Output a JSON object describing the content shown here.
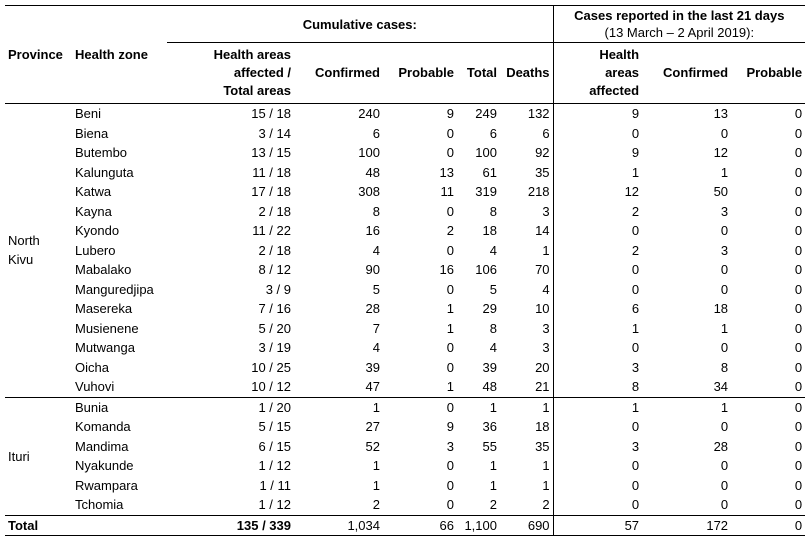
{
  "header": {
    "province": "Province",
    "health_zone": "Health zone",
    "cumulative": "Cumulative cases:",
    "recent_line1": "Cases reported in the last 21 days",
    "recent_line2": "(13 March – 2 April 2019):",
    "areas_affected": [
      "Health areas",
      "affected /",
      "Total areas"
    ],
    "confirmed": "Confirmed",
    "probable": "Probable",
    "total": "Total",
    "deaths": "Deaths",
    "recent_areas": [
      "Health",
      "areas",
      "affected"
    ],
    "recent_confirmed": "Confirmed",
    "recent_probable": "Probable"
  },
  "provinces": [
    {
      "name_lines": [
        "North",
        "Kivu"
      ],
      "zones": [
        {
          "zone": "Beni",
          "areas": "15 / 18",
          "confirmed": "240",
          "probable": "9",
          "total": "249",
          "deaths": "132",
          "r_areas": "9",
          "r_confirmed": "13",
          "r_probable": "0"
        },
        {
          "zone": "Biena",
          "areas": "3 / 14",
          "confirmed": "6",
          "probable": "0",
          "total": "6",
          "deaths": "6",
          "r_areas": "0",
          "r_confirmed": "0",
          "r_probable": "0"
        },
        {
          "zone": "Butembo",
          "areas": "13 / 15",
          "confirmed": "100",
          "probable": "0",
          "total": "100",
          "deaths": "92",
          "r_areas": "9",
          "r_confirmed": "12",
          "r_probable": "0"
        },
        {
          "zone": "Kalunguta",
          "areas": "11 / 18",
          "confirmed": "48",
          "probable": "13",
          "total": "61",
          "deaths": "35",
          "r_areas": "1",
          "r_confirmed": "1",
          "r_probable": "0"
        },
        {
          "zone": "Katwa",
          "areas": "17 / 18",
          "confirmed": "308",
          "probable": "11",
          "total": "319",
          "deaths": "218",
          "r_areas": "12",
          "r_confirmed": "50",
          "r_probable": "0"
        },
        {
          "zone": "Kayna",
          "areas": "2 / 18",
          "confirmed": "8",
          "probable": "0",
          "total": "8",
          "deaths": "3",
          "r_areas": "2",
          "r_confirmed": "3",
          "r_probable": "0"
        },
        {
          "zone": "Kyondo",
          "areas": "11 / 22",
          "confirmed": "16",
          "probable": "2",
          "total": "18",
          "deaths": "14",
          "r_areas": "0",
          "r_confirmed": "0",
          "r_probable": "0"
        },
        {
          "zone": "Lubero",
          "areas": "2 / 18",
          "confirmed": "4",
          "probable": "0",
          "total": "4",
          "deaths": "1",
          "r_areas": "2",
          "r_confirmed": "3",
          "r_probable": "0"
        },
        {
          "zone": "Mabalako",
          "areas": "8 / 12",
          "confirmed": "90",
          "probable": "16",
          "total": "106",
          "deaths": "70",
          "r_areas": "0",
          "r_confirmed": "0",
          "r_probable": "0"
        },
        {
          "zone": "Manguredjipa",
          "areas": "3 / 9",
          "confirmed": "5",
          "probable": "0",
          "total": "5",
          "deaths": "4",
          "r_areas": "0",
          "r_confirmed": "0",
          "r_probable": "0"
        },
        {
          "zone": "Masereka",
          "areas": "7 / 16",
          "confirmed": "28",
          "probable": "1",
          "total": "29",
          "deaths": "10",
          "r_areas": "6",
          "r_confirmed": "18",
          "r_probable": "0"
        },
        {
          "zone": "Musienene",
          "areas": "5 / 20",
          "confirmed": "7",
          "probable": "1",
          "total": "8",
          "deaths": "3",
          "r_areas": "1",
          "r_confirmed": "1",
          "r_probable": "0"
        },
        {
          "zone": "Mutwanga",
          "areas": "3 / 19",
          "confirmed": "4",
          "probable": "0",
          "total": "4",
          "deaths": "3",
          "r_areas": "0",
          "r_confirmed": "0",
          "r_probable": "0"
        },
        {
          "zone": "Oicha",
          "areas": "10 / 25",
          "confirmed": "39",
          "probable": "0",
          "total": "39",
          "deaths": "20",
          "r_areas": "3",
          "r_confirmed": "8",
          "r_probable": "0"
        },
        {
          "zone": "Vuhovi",
          "areas": "10 / 12",
          "confirmed": "47",
          "probable": "1",
          "total": "48",
          "deaths": "21",
          "r_areas": "8",
          "r_confirmed": "34",
          "r_probable": "0"
        }
      ]
    },
    {
      "name_lines": [
        "Ituri"
      ],
      "zones": [
        {
          "zone": "Bunia",
          "areas": "1 / 20",
          "confirmed": "1",
          "probable": "0",
          "total": "1",
          "deaths": "1",
          "r_areas": "1",
          "r_confirmed": "1",
          "r_probable": "0"
        },
        {
          "zone": "Komanda",
          "areas": "5 / 15",
          "confirmed": "27",
          "probable": "9",
          "total": "36",
          "deaths": "18",
          "r_areas": "0",
          "r_confirmed": "0",
          "r_probable": "0"
        },
        {
          "zone": "Mandima",
          "areas": "6 / 15",
          "confirmed": "52",
          "probable": "3",
          "total": "55",
          "deaths": "35",
          "r_areas": "3",
          "r_confirmed": "28",
          "r_probable": "0"
        },
        {
          "zone": "Nyakunde",
          "areas": "1 / 12",
          "confirmed": "1",
          "probable": "0",
          "total": "1",
          "deaths": "1",
          "r_areas": "0",
          "r_confirmed": "0",
          "r_probable": "0"
        },
        {
          "zone": "Rwampara",
          "areas": "1 / 11",
          "confirmed": "1",
          "probable": "0",
          "total": "1",
          "deaths": "1",
          "r_areas": "0",
          "r_confirmed": "0",
          "r_probable": "0"
        },
        {
          "zone": "Tchomia",
          "areas": "1 / 12",
          "confirmed": "2",
          "probable": "0",
          "total": "2",
          "deaths": "2",
          "r_areas": "0",
          "r_confirmed": "0",
          "r_probable": "0"
        }
      ]
    }
  ],
  "total": {
    "label": "Total",
    "areas": "135 / 339",
    "confirmed": "1,034",
    "probable": "66",
    "total": "1,100",
    "deaths": "690",
    "r_areas": "57",
    "r_confirmed": "172",
    "r_probable": "0"
  }
}
